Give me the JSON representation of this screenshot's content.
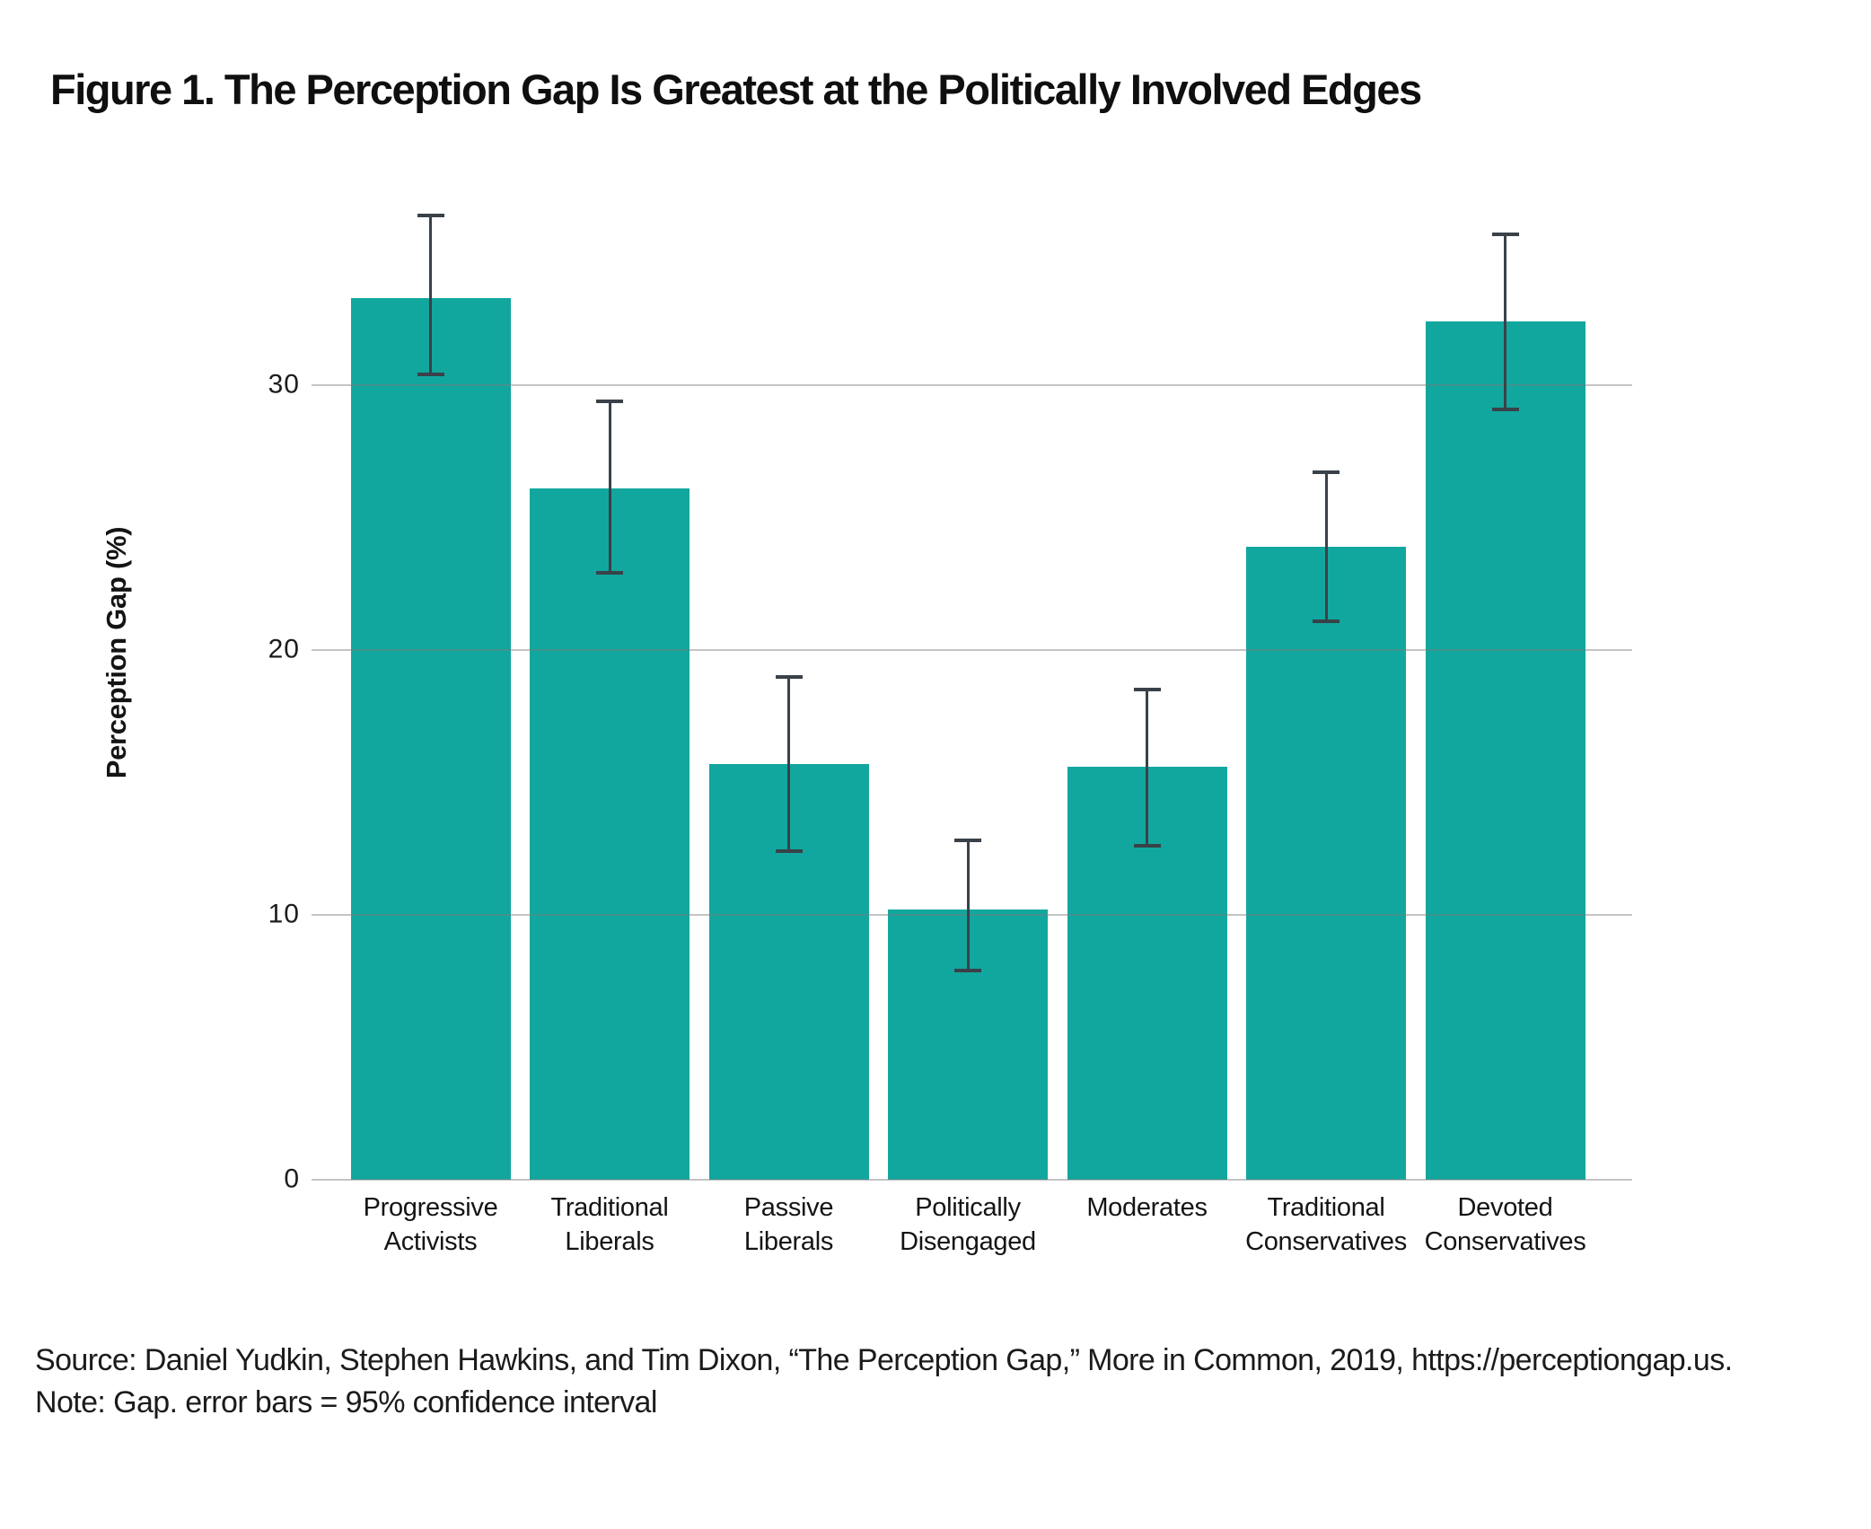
{
  "figure": {
    "title": "Figure 1. The Perception Gap Is Greatest at the Politically Involved Edges"
  },
  "chart_data": {
    "type": "bar",
    "title": "Figure 1. The Perception Gap Is Greatest at the Politically Involved Edges",
    "xlabel": "",
    "ylabel": "Perception Gap (%)",
    "categories": [
      "Progressive\nActivists",
      "Traditional\nLiberals",
      "Passive\nLiberals",
      "Politically\nDisengaged",
      "Moderates",
      "Traditional\nConservatives",
      "Devoted\nConservatives"
    ],
    "values": [
      33.3,
      26.1,
      15.7,
      10.2,
      15.6,
      23.9,
      32.4
    ],
    "error_low": [
      30.4,
      22.9,
      12.4,
      7.9,
      12.6,
      21.1,
      29.1
    ],
    "error_high": [
      36.4,
      29.4,
      19.0,
      12.8,
      18.5,
      26.7,
      35.7
    ],
    "yticks": [
      0,
      10,
      20,
      30
    ],
    "ytick_labels": [
      "0",
      "10",
      "20",
      "30"
    ],
    "ylim": [
      0,
      37.5
    ],
    "grid": "horizontal",
    "legend": "none",
    "bar_color": "#12a79e",
    "error_bar_color": "#394149",
    "gridline_color": "#c8c8c8",
    "error_bar_meaning": "95% confidence interval"
  },
  "footer": {
    "source": "Source: Daniel Yudkin, Stephen Hawkins, and Tim Dixon, “The Perception Gap,” More in Common, 2019, https://perceptiongap.us.",
    "note": "Note: Gap. error bars = 95% confidence interval"
  }
}
